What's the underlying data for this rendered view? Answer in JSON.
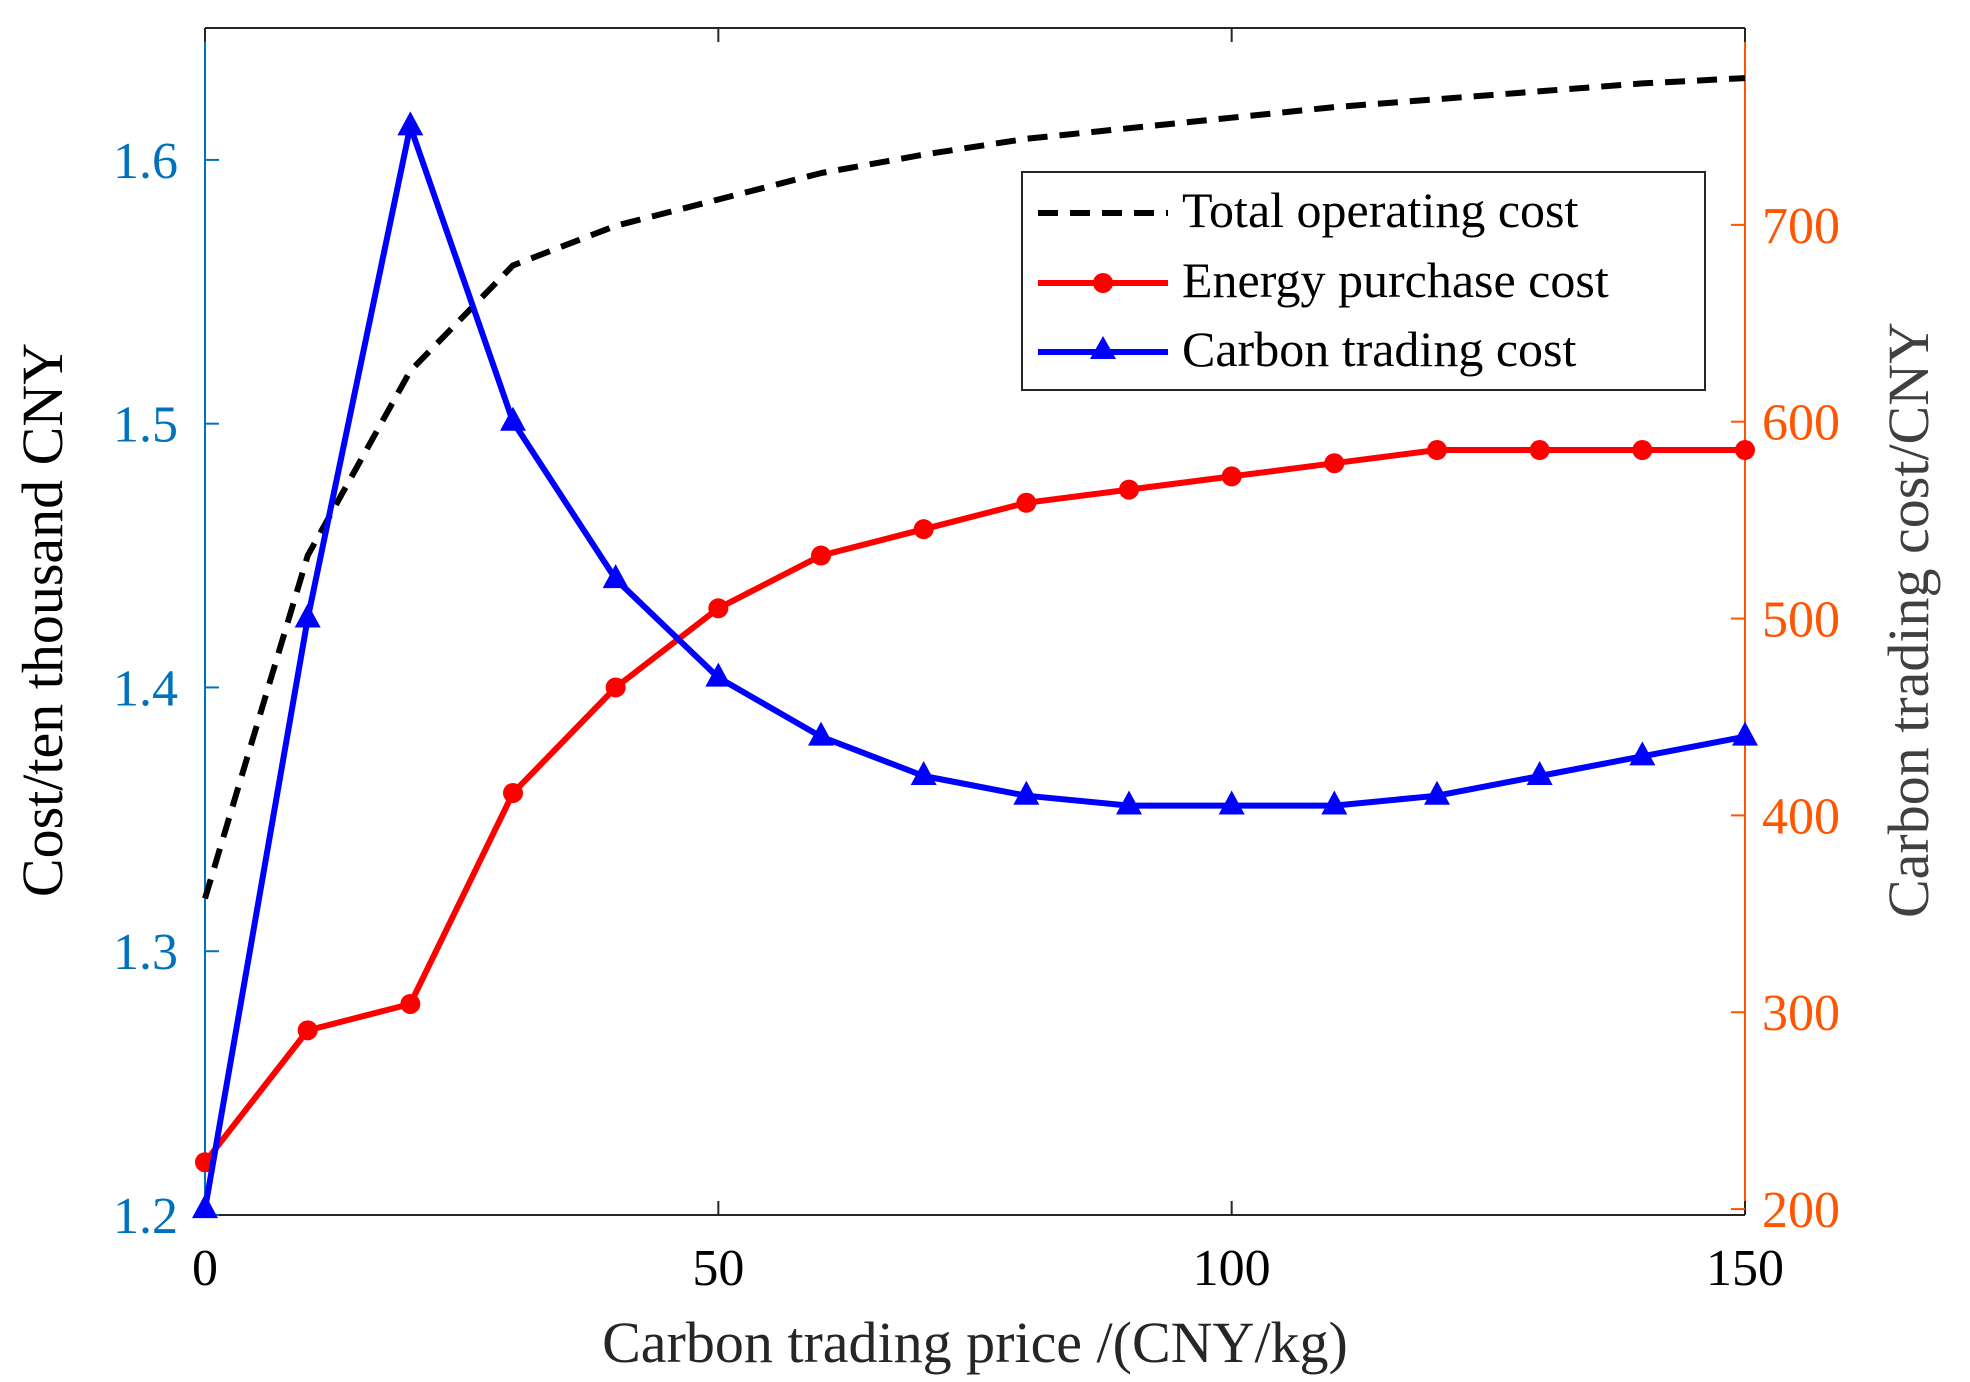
{
  "chart_data": {
    "type": "line",
    "title": "",
    "xlabel": "Carbon trading price /(CNY/kg)",
    "ylabel_left": "Cost/ten thousand CNY",
    "ylabel_right": "Carbon trading cost/CNY",
    "xlim": [
      0,
      150
    ],
    "ylim_left": [
      1.2,
      1.65
    ],
    "ylim_right": [
      197,
      800
    ],
    "xticks": [
      "0",
      "50",
      "100",
      "150"
    ],
    "yticks_left": [
      "1.2",
      "1.3",
      "1.4",
      "1.5",
      "1.6"
    ],
    "yticks_right": [
      "200",
      "300",
      "400",
      "500",
      "600",
      "700"
    ],
    "grid": false,
    "legend_position": "top-right",
    "series": [
      {
        "name": "Total operating cost",
        "axis": "left",
        "style": "dashed",
        "marker": "none",
        "color": "#000000",
        "x": [
          0,
          10,
          20,
          30,
          40,
          50,
          60,
          70,
          80,
          90,
          100,
          110,
          120,
          130,
          140,
          150
        ],
        "y": [
          1.32,
          1.45,
          1.52,
          1.56,
          1.575,
          1.585,
          1.595,
          1.602,
          1.608,
          1.612,
          1.616,
          1.62,
          1.623,
          1.626,
          1.629,
          1.631
        ]
      },
      {
        "name": "Energy purchase cost",
        "axis": "left",
        "style": "solid",
        "marker": "circle",
        "color": "#FF0000",
        "x": [
          0,
          10,
          20,
          30,
          40,
          50,
          60,
          70,
          80,
          90,
          100,
          110,
          120,
          130,
          140,
          150
        ],
        "y": [
          1.22,
          1.27,
          1.28,
          1.36,
          1.4,
          1.43,
          1.45,
          1.46,
          1.47,
          1.475,
          1.48,
          1.485,
          1.49,
          1.49,
          1.49,
          1.49
        ]
      },
      {
        "name": "Carbon trading cost",
        "axis": "right",
        "style": "solid",
        "marker": "triangle",
        "color": "#0000FF",
        "x": [
          0,
          10,
          20,
          30,
          40,
          50,
          60,
          70,
          80,
          90,
          100,
          110,
          120,
          130,
          140,
          150
        ],
        "y": [
          200,
          500,
          750,
          600,
          520,
          470,
          440,
          420,
          410,
          405,
          405,
          405,
          410,
          420,
          430,
          440
        ]
      }
    ]
  }
}
